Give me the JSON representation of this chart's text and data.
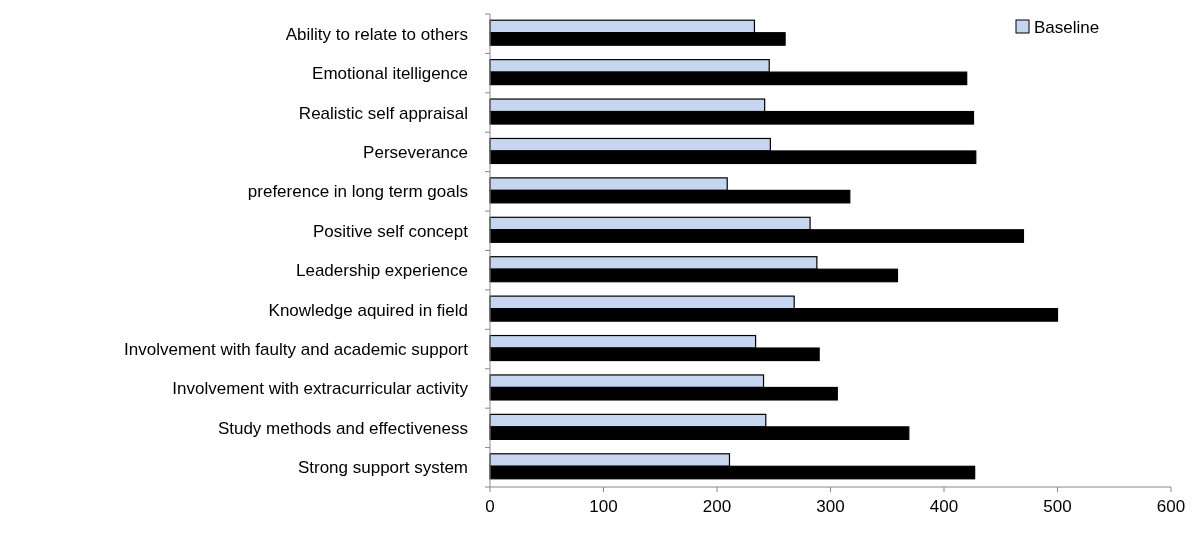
{
  "chart_data": {
    "type": "bar",
    "orientation": "horizontal",
    "categories": [
      "Ability to relate to others",
      "Emotional itelligence",
      "Realistic self appraisal",
      "Perseverance",
      "preference in long term goals",
      "Positive self concept",
      "Leadership experience",
      "Knowledge aquired in field",
      "Involvement with faulty and academic support",
      "Involvement with extracurricular activity",
      "Study methods and effectiveness",
      "Strong support system"
    ],
    "series": [
      {
        "name": "Baseline",
        "color": "#c6d6f0",
        "values": [
          233,
          246,
          242,
          247,
          209,
          282,
          288,
          268,
          234,
          241,
          243,
          211
        ]
      },
      {
        "color": "#000000",
        "values": [
          260,
          420,
          426,
          428,
          317,
          470,
          359,
          500,
          290,
          306,
          369,
          427
        ]
      }
    ],
    "xlim": [
      0,
      600
    ],
    "xticks": [
      0,
      100,
      200,
      300,
      400,
      500,
      600
    ],
    "grid": false,
    "legend": "top right"
  }
}
